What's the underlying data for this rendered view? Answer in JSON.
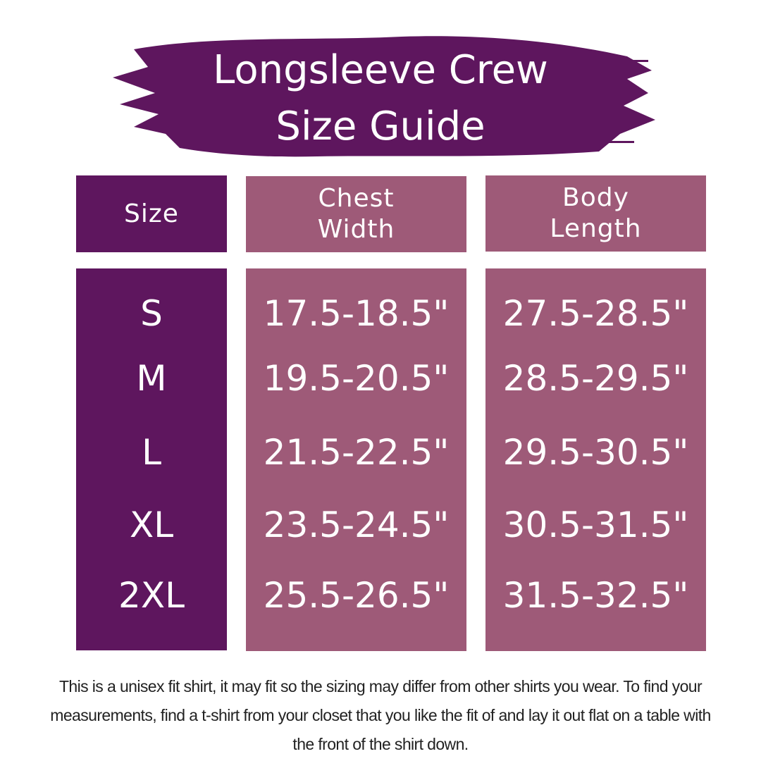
{
  "title": {
    "line1": "Longsleeve Crew",
    "line2": "Size Guide"
  },
  "colors": {
    "banner": "#5e165e",
    "size_column": "#5e165e",
    "measure_columns": "#9e5a78",
    "text": "#ffffff"
  },
  "table": {
    "headers": [
      {
        "line1": "Size",
        "line2": ""
      },
      {
        "line1": "Chest",
        "line2": "Width"
      },
      {
        "line1": "Body",
        "line2": "Length"
      }
    ],
    "rows": [
      {
        "size": "S",
        "chest": "17.5-18.5\"",
        "length": "27.5-28.5\""
      },
      {
        "size": "M",
        "chest": "19.5-20.5\"",
        "length": "28.5-29.5\""
      },
      {
        "size": "L",
        "chest": "21.5-22.5\"",
        "length": "29.5-30.5\""
      },
      {
        "size": "XL",
        "chest": "23.5-24.5\"",
        "length": "30.5-31.5\""
      },
      {
        "size": "2XL",
        "chest": "25.5-26.5\"",
        "length": "31.5-32.5\""
      }
    ]
  },
  "note": "This is a unisex fit shirt, it may fit so the sizing may differ from other shirts you wear. To find your measurements, find a t-shirt from your closet that you like the fit of and lay it out flat on a table with the front of the shirt down."
}
